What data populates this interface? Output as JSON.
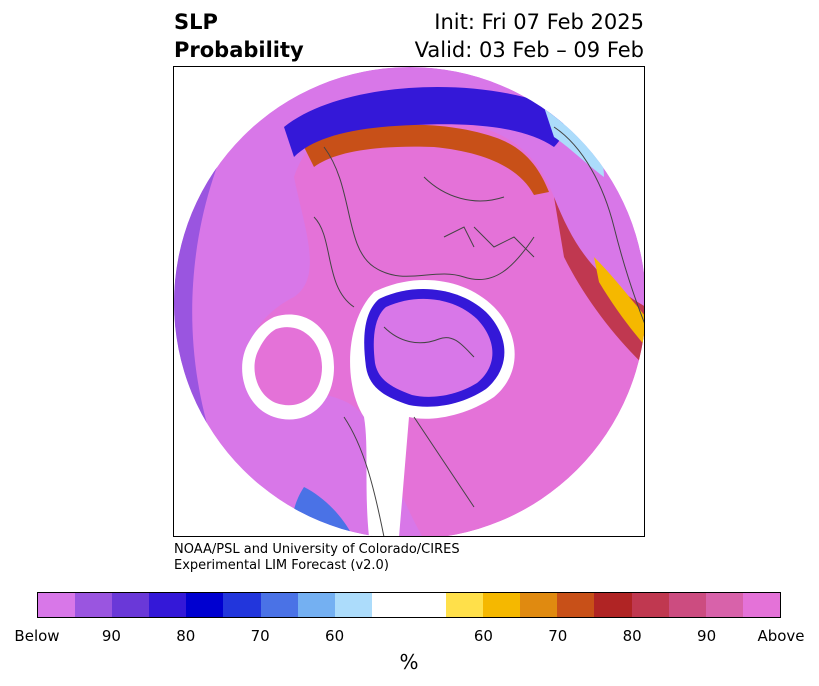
{
  "title": {
    "left_line1": "SLP",
    "left_line2": "Probability",
    "right_line1": "Init: Fri 07 Feb 2025",
    "right_line2": "Valid: 03 Feb – 09 Feb"
  },
  "credit": {
    "line1": "NOAA/PSL and University of Colorado/CIRES",
    "line2": "Experimental LIM Forecast (v2.0)"
  },
  "colorbar": {
    "colors": [
      "#d877e8",
      "#9a55e0",
      "#6a38d8",
      "#3418d8",
      "#0000d0",
      "#2236dc",
      "#4a72e6",
      "#74b0f2",
      "#acdcfb",
      "#ffffff",
      "#ffffff",
      "#ffe04a",
      "#f5b800",
      "#e08a10",
      "#c85018",
      "#b02424",
      "#c03850",
      "#cc4c80",
      "#d862aa",
      "#e472d8"
    ],
    "labels": [
      "Below",
      "90",
      "80",
      "70",
      "60",
      "60",
      "70",
      "80",
      "90",
      "Above"
    ],
    "unit": "%"
  },
  "map": {
    "palette": {
      "above_outer": "#e472d8",
      "above_mid": "#cc4c80",
      "above_high": "#b02424",
      "orange": "#e08a10",
      "yellow": "#f5b800",
      "light_yellow": "#ffe04a",
      "neutral": "#ffffff",
      "light_blue": "#acdcfb",
      "blue": "#4a72e6",
      "dark_blue": "#0000d0",
      "violet": "#6a38d8",
      "below_outer": "#d877e8",
      "coast": "#444444"
    }
  }
}
